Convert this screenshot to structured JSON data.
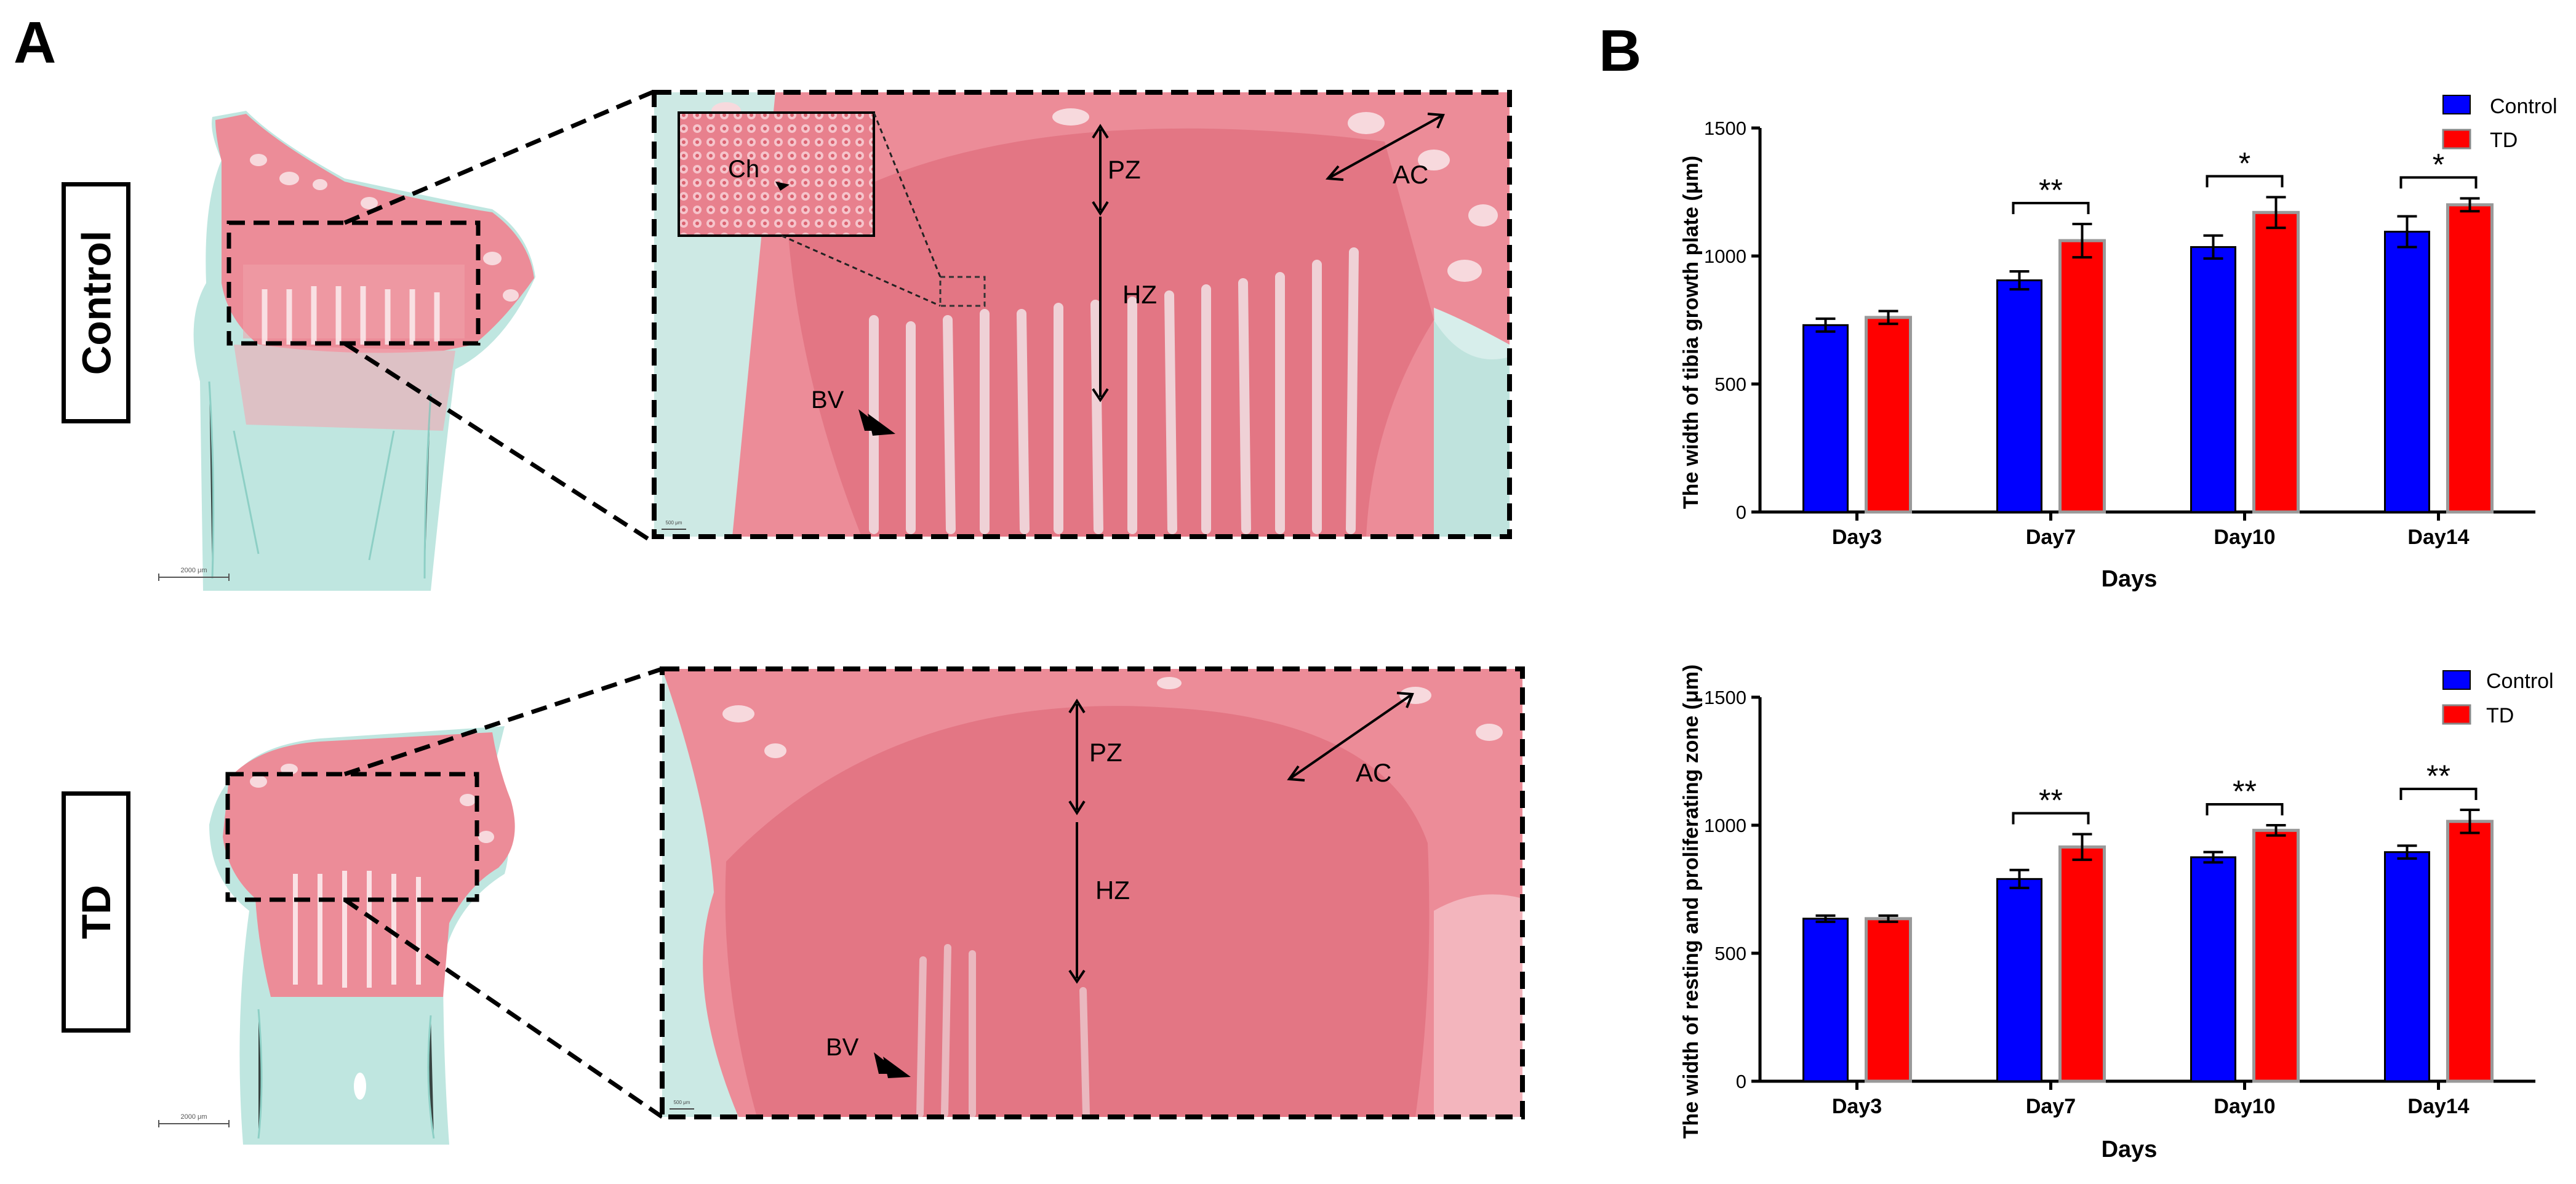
{
  "panels": {
    "a": "A",
    "b": "B"
  },
  "histology": {
    "rows": [
      {
        "label": "Control",
        "annotations": {
          "pz": "PZ",
          "hz": "HZ",
          "ac": "AC",
          "bv": "BV",
          "ch": "Ch"
        },
        "scale_overview": "2000 μm",
        "scale_zoom": "500 μm"
      },
      {
        "label": "TD",
        "annotations": {
          "pz": "PZ",
          "hz": "HZ",
          "ac": "AC",
          "bv": "BV"
        },
        "scale_overview": "2000 μm",
        "scale_zoom": "500 μm"
      }
    ],
    "colors": {
      "cartilage": "#e9818d",
      "bone": "#8fd3c9",
      "background": "#ffffff"
    }
  },
  "chart_data": [
    {
      "type": "bar",
      "categories": [
        "Day3",
        "Day7",
        "Day10",
        "Day14"
      ],
      "series": [
        {
          "name": "Control",
          "color": "#0000ff",
          "values": [
            730,
            905,
            1035,
            1095
          ],
          "errors": [
            25,
            35,
            45,
            60
          ]
        },
        {
          "name": "TD",
          "color": "#ff0000",
          "values": [
            760,
            1060,
            1170,
            1200
          ],
          "errors": [
            25,
            65,
            60,
            25
          ]
        }
      ],
      "significance": [
        "",
        "**",
        "*",
        "*"
      ],
      "title": "",
      "xlabel": "Days",
      "ylabel": "The width of tibia growth plate (μm)",
      "ylim": [
        0,
        1500
      ],
      "yticks": [
        0,
        500,
        1000,
        1500
      ],
      "legend": "top-right",
      "grid": false
    },
    {
      "type": "bar",
      "categories": [
        "Day3",
        "Day7",
        "Day10",
        "Day14"
      ],
      "series": [
        {
          "name": "Control",
          "color": "#0000ff",
          "values": [
            635,
            790,
            875,
            895
          ],
          "errors": [
            12,
            35,
            20,
            25
          ]
        },
        {
          "name": "TD",
          "color": "#ff0000",
          "values": [
            635,
            915,
            980,
            1015
          ],
          "errors": [
            12,
            50,
            20,
            45
          ]
        }
      ],
      "significance": [
        "",
        "**",
        "**",
        "**"
      ],
      "title": "",
      "xlabel": "Days",
      "ylabel": "The width of resting  and proliferating zone (μm)",
      "ylim": [
        0,
        1500
      ],
      "yticks": [
        0,
        500,
        1000,
        1500
      ],
      "legend": "top-right",
      "grid": false
    }
  ]
}
